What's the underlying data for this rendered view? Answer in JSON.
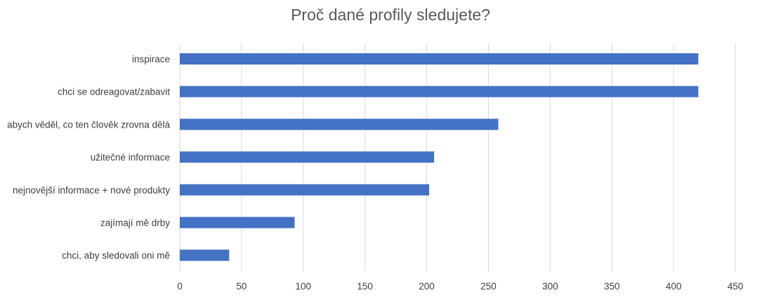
{
  "chart_data": {
    "type": "bar",
    "orientation": "horizontal",
    "title": "Proč dané profily sledujete?",
    "xlabel": "",
    "ylabel": "",
    "categories": [
      "inspirace",
      "chci se odreagovat/zabavit",
      "abych věděl, co ten člověk zrovna dělá",
      "užitečné informace",
      "nejnovější informace + nové produkty",
      "zajímají mě drby",
      "chci, aby sledovali oni mě"
    ],
    "values": [
      420,
      420,
      258,
      206,
      202,
      93,
      40
    ],
    "xlim": [
      0,
      450
    ],
    "xticks": [
      "0",
      "50",
      "100",
      "150",
      "200",
      "250",
      "300",
      "350",
      "400",
      "450"
    ],
    "grid": "vertical",
    "legend": "none",
    "bar_color": "#4472c4",
    "grid_color": "#d9d9d9"
  }
}
